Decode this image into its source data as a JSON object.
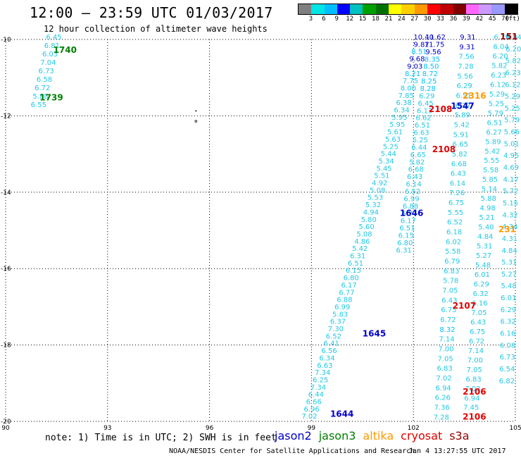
{
  "title": "12:00 — 23:59 UTC 01/03/2017",
  "subtitle": "12 hour collection of altimeter wave heights",
  "colorbar": {
    "unit_label": "(ft)",
    "ticks": [
      "3",
      "6",
      "9",
      "12",
      "15",
      "18",
      "21",
      "24",
      "27",
      "30",
      "33",
      "36",
      "39",
      "42",
      "45",
      "70"
    ],
    "colors": [
      "#7f7f7f",
      "#00e5e5",
      "#00bfff",
      "#0000ff",
      "#00c0c0",
      "#00a000",
      "#007000",
      "#ffff00",
      "#ffd000",
      "#ff9900",
      "#ff0000",
      "#c00000",
      "#800000",
      "#ff66ff",
      "#cc99ff",
      "#9999ff",
      "#000000"
    ]
  },
  "map": {
    "lon_range": [
      90,
      105
    ],
    "lat_range": [
      -20,
      -10
    ],
    "lon_ticks": [
      "90",
      "93",
      "96",
      "99",
      "102",
      "105"
    ],
    "lat_ticks": [
      "-10",
      "-12",
      "-14",
      "-16",
      "-18",
      "-20"
    ]
  },
  "satellite_colors": {
    "jason2": "#0000cc",
    "jason3": "#008000",
    "altika": "#ff9900",
    "cryosat": "#e00000",
    "s3a": "#990000",
    "wave": "#22c8e6"
  },
  "tracks": [
    {
      "sat": "jason3",
      "lon0": 90.97,
      "lat0": -11.77,
      "lon1": 91.42,
      "lat1": -10.0,
      "n": 12,
      "values": [
        "6.55",
        "5.88",
        "6.72",
        "6.58",
        "6.73",
        "7.04",
        "6.03",
        "6.81",
        "6.45",
        "",
        "",
        ""
      ]
    },
    {
      "sat": "jason2",
      "lon0": 98.94,
      "lat0": -19.93,
      "lon1": 102.3,
      "lat1": -10.0,
      "n": 78,
      "values": [
        "7.02",
        "6.96",
        "6.66",
        "6.44",
        "7.34",
        "6.25",
        "7.34",
        "6.63",
        "6.34",
        "6.56",
        "6.41",
        "6.52",
        "7.30",
        "6.37",
        "5.83",
        "6.99",
        "6.88",
        "6.77",
        "6.17",
        "6.80",
        "6.15",
        "6.51",
        "6.31",
        "5.42",
        "4.86",
        "5.08",
        "5.60",
        "5.80",
        "4.94",
        "5.32",
        "5.53",
        "5.08",
        "4.92",
        "5.51",
        "5.45",
        "5.34",
        "5.44",
        "5.25",
        "5.63",
        "5.61",
        "5.95",
        "5.95",
        "6.34",
        "6.38",
        "7.85",
        "8.00",
        "7.75",
        "8.21",
        "9.03",
        "9.68",
        "8.51",
        "9.87",
        "10.40"
      ]
    },
    {
      "sat": "wave",
      "lon0": 101.72,
      "lat0": -15.58,
      "lon1": 102.65,
      "lat1": -10.0,
      "n": 40,
      "values": [
        "6.31",
        "6.80",
        "6.15",
        "6.51",
        "6.17",
        "6.77",
        "6.88",
        "6.99",
        "6.52",
        "6.14",
        "6.43",
        "6.68",
        "5.82",
        "6.65",
        "6.44",
        "5.25",
        "6.63",
        "6.51",
        "6.62",
        "6.13",
        "6.45",
        "6.29",
        "8.28",
        "8.25",
        "8.72",
        "8.50",
        "8.35",
        "9.56",
        "11.75",
        "11.62"
      ]
    },
    {
      "sat": "wave",
      "lon0": 102.82,
      "lat0": -19.95,
      "lon1": 103.6,
      "lat1": -10.0,
      "n": 70,
      "values": [
        "7.28",
        "7.36",
        "6.26",
        "6.94",
        "7.02",
        "6.83",
        "7.05",
        "7.00",
        "7.14",
        "8.32",
        "6.72",
        "6.75",
        "6.43",
        "7.05",
        "5.78",
        "6.83",
        "6.79",
        "5.58",
        "6.02",
        "6.18",
        "6.52",
        "5.55",
        "6.75",
        "7.26",
        "6.14",
        "6.43",
        "6.68",
        "5.82",
        "6.65",
        "5.91",
        "5.42",
        "5.89",
        "6.27",
        "6.51",
        "6.29",
        "5.56",
        "7.28",
        "7.56",
        "9.31",
        "9.31"
      ]
    },
    {
      "sat": "wave",
      "lon0": 103.7,
      "lat0": -19.7,
      "lon1": 104.6,
      "lat1": -10.0,
      "n": 72,
      "values": [
        "7.45",
        "6.94",
        "7.02",
        "6.83",
        "7.05",
        "7.00",
        "7.14",
        "6.72",
        "6.75",
        "6.43",
        "7.05",
        "6.16",
        "6.32",
        "6.29",
        "6.01",
        "5.48",
        "5.27",
        "5.31",
        "4.84",
        "5.40",
        "5.21",
        "4.98",
        "5.88",
        "5.14",
        "5.85",
        "5.58",
        "5.55",
        "5.42",
        "5.89",
        "6.27",
        "6.51",
        "5.79",
        "5.25",
        "5.29",
        "6.12",
        "6.23",
        "5.82",
        "6.20",
        "6.04",
        "6.79"
      ]
    },
    {
      "sat": "wave",
      "lon0": 104.75,
      "lat0": -19.0,
      "lon1": 104.95,
      "lat1": -10.0,
      "n": 60,
      "values": [
        "6.82",
        "6.54",
        "6.73",
        "6.08",
        "6.16",
        "6.32",
        "6.29",
        "6.01",
        "5.48",
        "5.27",
        "5.31",
        "4.84",
        "4.31",
        "4.34",
        "4.32",
        "5.15",
        "5.72",
        "4.17",
        "4.69",
        "4.95",
        "5.01",
        "5.66",
        "5.79",
        "5.25",
        "5.29",
        "6.12",
        "6.23",
        "5.82",
        "6.20",
        "6.04"
      ]
    }
  ],
  "pass_labels": [
    {
      "text": "1740",
      "sat": "jason3",
      "lon": 91.4,
      "lat": -10.35
    },
    {
      "text": "1739",
      "sat": "jason3",
      "lon": 91.0,
      "lat": -11.6
    },
    {
      "text": "1547",
      "sat": "jason2",
      "lon": 103.1,
      "lat": -11.82
    },
    {
      "text": "1646",
      "sat": "jason2",
      "lon": 101.6,
      "lat": -14.62
    },
    {
      "text": "1645",
      "sat": "jason2",
      "lon": 100.5,
      "lat": -17.78
    },
    {
      "text": "1644",
      "sat": "jason2",
      "lon": 99.55,
      "lat": -19.88
    },
    {
      "text": "2316",
      "sat": "altika",
      "lon": 103.45,
      "lat": -11.55
    },
    {
      "text": "231",
      "sat": "altika",
      "lon": 104.5,
      "lat": -15.05
    },
    {
      "text": "151",
      "sat": "s3a",
      "lon": 104.55,
      "lat": -10.0
    },
    {
      "text": "2108",
      "sat": "cryosat",
      "lon": 102.45,
      "lat": -11.9
    },
    {
      "text": "2108",
      "sat": "cryosat",
      "lon": 102.55,
      "lat": -12.95
    },
    {
      "text": "2107",
      "sat": "cryosat",
      "lon": 103.15,
      "lat": -17.05
    },
    {
      "text": "2106",
      "sat": "cryosat",
      "lon": 103.45,
      "lat": -19.3
    },
    {
      "text": "2106",
      "sat": "cryosat",
      "lon": 103.45,
      "lat": -19.95
    }
  ],
  "footer": {
    "note": "note: 1) Time is in UTC; 2) SWH is in feet",
    "sat_names": [
      {
        "label": "jason2",
        "sat": "jason2"
      },
      {
        "label": "jason3",
        "sat": "jason3"
      },
      {
        "label": "altika",
        "sat": "altika"
      },
      {
        "label": "cryosat",
        "sat": "cryosat"
      },
      {
        "label": "s3a",
        "sat": "s3a"
      }
    ],
    "credit": "NOAA/NESDIS Center for Satellite Applications and Research",
    "generated": "Jan  4 13:27:55 UTC 2017"
  }
}
